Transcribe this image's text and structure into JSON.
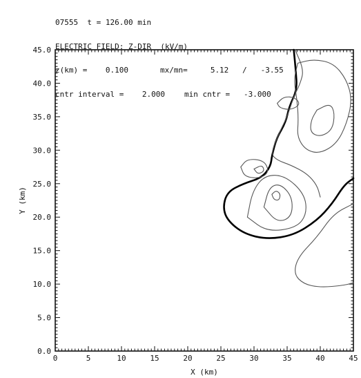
{
  "header": {
    "line1": "07555  t = 126.00 min",
    "line2": "ELECTRIC FIELD: Z-DIR  (kV/m)",
    "line3a": "z(km) =    0.100",
    "line3b": "mx/mn=     5.12   /   -3.55",
    "line4a": "cntr interval =    2.000",
    "line4b": "min cntr =   -3.000"
  },
  "chart_data": {
    "type": "contour",
    "title": "ELECTRIC FIELD: Z-DIR  (kV/m)",
    "xlabel": "X  (km)",
    "ylabel": "Y  (km)",
    "xlim": [
      0,
      45
    ],
    "ylim": [
      0,
      45
    ],
    "xticks": [
      0,
      5,
      10,
      15,
      20,
      25,
      30,
      35,
      40,
      45
    ],
    "yticks": [
      0,
      5,
      10,
      15,
      20,
      25,
      30,
      35,
      40,
      45
    ],
    "time_min": 126.0,
    "z_km": 0.1,
    "max": 5.12,
    "min": -3.55,
    "contour_interval": 2.0,
    "min_contour": -3.0,
    "contours": [
      {
        "level": 1.0,
        "style": "thick",
        "points": [
          [
            36.0,
            45.0
          ],
          [
            36.3,
            42.0
          ],
          [
            36.5,
            39.0
          ],
          [
            35.3,
            36.5
          ],
          [
            34.8,
            34.2
          ],
          [
            33.4,
            31.8
          ],
          [
            32.7,
            29.2
          ],
          [
            32.5,
            27.6
          ],
          [
            31.2,
            25.9
          ],
          [
            28.4,
            25.0
          ],
          [
            26.0,
            23.8
          ],
          [
            25.3,
            21.5
          ],
          [
            26.0,
            19.5
          ],
          [
            28.5,
            17.5
          ],
          [
            32.0,
            16.7
          ],
          [
            36.0,
            17.3
          ],
          [
            39.5,
            19.5
          ],
          [
            41.8,
            22.0
          ],
          [
            43.6,
            24.8
          ],
          [
            45.0,
            25.8
          ]
        ]
      },
      {
        "level": 1.0,
        "style": "thin",
        "points": [
          [
            36.2,
            45.0
          ],
          [
            37.5,
            42.0
          ],
          [
            37.0,
            40.0
          ],
          [
            36.0,
            38.0
          ],
          [
            35.0,
            35.0
          ],
          [
            34.0,
            33.0
          ],
          [
            32.5,
            29.5
          ],
          [
            33.5,
            28.5
          ],
          [
            35.5,
            27.8
          ],
          [
            38.0,
            26.5
          ],
          [
            39.5,
            24.8
          ],
          [
            40.0,
            23.0
          ]
        ]
      },
      {
        "level": 3.0,
        "style": "thin",
        "points": [
          [
            36.6,
            43.0
          ],
          [
            39.0,
            43.6
          ],
          [
            42.0,
            43.0
          ],
          [
            44.0,
            40.5
          ],
          [
            44.8,
            37.5
          ],
          [
            44.0,
            34.0
          ],
          [
            42.5,
            31.0
          ],
          [
            40.0,
            29.5
          ],
          [
            37.8,
            30.0
          ],
          [
            36.5,
            32.0
          ],
          [
            36.7,
            34.5
          ],
          [
            36.5,
            37.5
          ],
          [
            36.0,
            40.5
          ],
          [
            36.6,
            43.0
          ]
        ]
      },
      {
        "level": 5.0,
        "style": "thin",
        "points": [
          [
            39.5,
            36.0
          ],
          [
            41.5,
            37.0
          ],
          [
            42.2,
            35.5
          ],
          [
            41.8,
            33.0
          ],
          [
            40.0,
            32.0
          ],
          [
            38.5,
            32.6
          ],
          [
            38.6,
            34.5
          ],
          [
            39.5,
            36.0
          ]
        ]
      },
      {
        "level": 1.0,
        "style": "thin",
        "points": [
          [
            29.0,
            20.0
          ],
          [
            29.8,
            24.0
          ],
          [
            31.7,
            26.3
          ],
          [
            34.7,
            26.2
          ],
          [
            37.6,
            23.5
          ],
          [
            38.0,
            20.5
          ],
          [
            36.4,
            18.4
          ],
          [
            32.0,
            17.8
          ],
          [
            29.0,
            20.0
          ]
        ]
      },
      {
        "level": 3.0,
        "style": "thin",
        "points": [
          [
            31.5,
            21.5
          ],
          [
            32.3,
            24.5
          ],
          [
            34.0,
            25.0
          ],
          [
            35.8,
            23.0
          ],
          [
            35.7,
            20.0
          ],
          [
            33.5,
            19.2
          ],
          [
            31.5,
            21.5
          ]
        ]
      },
      {
        "level": 5.0,
        "style": "thin",
        "points": [
          [
            32.7,
            23.4
          ],
          [
            33.3,
            24.0
          ],
          [
            34.0,
            23.5
          ],
          [
            33.8,
            22.5
          ],
          [
            33.0,
            22.6
          ],
          [
            32.7,
            23.4
          ]
        ]
      },
      {
        "level": 1.0,
        "style": "thin",
        "points": [
          [
            28.0,
            27.5
          ],
          [
            29.0,
            28.7
          ],
          [
            31.5,
            28.5
          ],
          [
            32.3,
            26.8
          ],
          [
            31.0,
            25.8
          ],
          [
            28.6,
            26.0
          ],
          [
            28.0,
            27.5
          ]
        ]
      },
      {
        "level": 3.0,
        "style": "thin",
        "points": [
          [
            30.0,
            27.2
          ],
          [
            31.2,
            27.8
          ],
          [
            31.6,
            26.9
          ],
          [
            30.6,
            26.4
          ],
          [
            30.0,
            27.2
          ]
        ]
      },
      {
        "level": 1.0,
        "style": "thin",
        "points": [
          [
            33.5,
            37.0
          ],
          [
            34.5,
            38.0
          ],
          [
            36.2,
            37.9
          ],
          [
            37.0,
            36.8
          ],
          [
            35.5,
            36.0
          ],
          [
            33.9,
            36.3
          ],
          [
            33.5,
            37.0
          ]
        ]
      },
      {
        "level": -3.0,
        "style": "thin",
        "points": [
          [
            45.0,
            22.0
          ],
          [
            42.0,
            20.5
          ],
          [
            39.5,
            17.0
          ],
          [
            36.6,
            14.0
          ],
          [
            36.0,
            11.5
          ],
          [
            37.5,
            10.0
          ],
          [
            40.0,
            9.5
          ],
          [
            43.5,
            9.8
          ],
          [
            45.0,
            10.2
          ]
        ]
      }
    ]
  }
}
